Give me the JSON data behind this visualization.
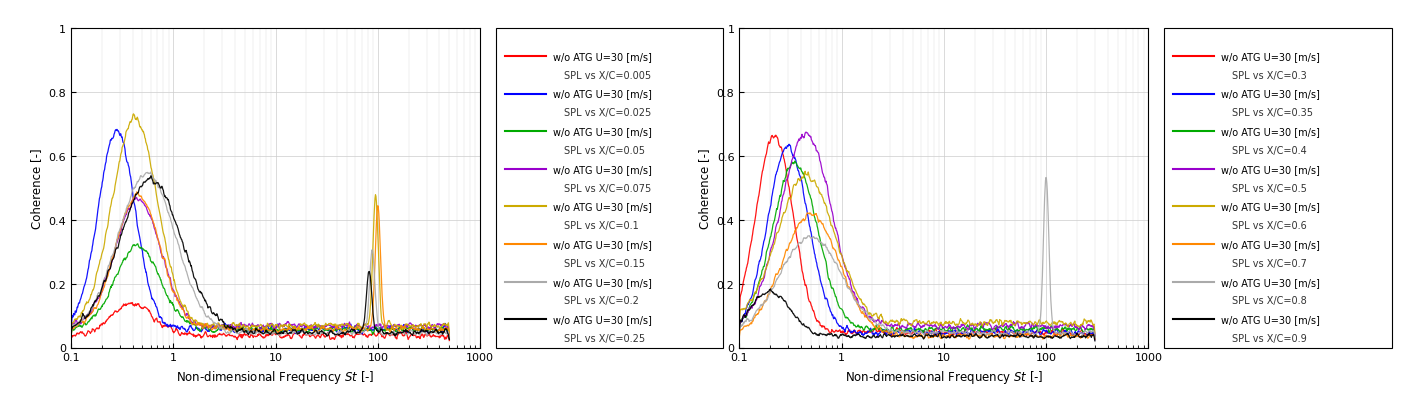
{
  "colors1": [
    "#ff0000",
    "#0000ff",
    "#00aa00",
    "#9900cc",
    "#ccaa00",
    "#ff8800",
    "#aaaaaa",
    "#000000"
  ],
  "colors2": [
    "#ff0000",
    "#0000ff",
    "#00aa00",
    "#9900cc",
    "#ccaa00",
    "#ff8800",
    "#aaaaaa",
    "#000000"
  ],
  "legend1_line_labels": [
    "w/o ATG U=30 [m/s]",
    "w/o ATG U=30 [m/s]",
    "w/o ATG U=30 [m/s]",
    "w/o ATG U=30 [m/s]",
    "w/o ATG U=30 [m/s]",
    "w/o ATG U=30 [m/s]",
    "w/o ATG U=30 [m/s]",
    "w/o ATG U=30 [m/s]"
  ],
  "legend1_text_labels": [
    "SPL vs X/C=0.005",
    "SPL vs X/C=0.025",
    "SPL vs X/C=0.05",
    "SPL vs X/C=0.075",
    "SPL vs X/C=0.1",
    "SPL vs X/C=0.15",
    "SPL vs X/C=0.2",
    "SPL vs X/C=0.25"
  ],
  "legend2_line_labels": [
    "w/o ATG U=30 [m/s]",
    "w/o ATG U=30 [m/s]",
    "w/o ATG U=30 [m/s]",
    "w/o ATG U=30 [m/s]",
    "w/o ATG U=30 [m/s]",
    "w/o ATG U=30 [m/s]",
    "w/o ATG U=30 [m/s]",
    "w/o ATG U=30 [m/s]"
  ],
  "legend2_text_labels": [
    "SPL vs X/C=0.3",
    "SPL vs X/C=0.35",
    "SPL vs X/C=0.4",
    "SPL vs X/C=0.5",
    "SPL vs X/C=0.6",
    "SPL vs X/C=0.7",
    "SPL vs X/C=0.8",
    "SPL vs X/C=0.9"
  ],
  "xlabel": "Non-dimensional Frequency $St$ [-]",
  "ylabel": "Coherence [-]",
  "figsize": [
    14.2,
    4.1
  ],
  "dpi": 100
}
